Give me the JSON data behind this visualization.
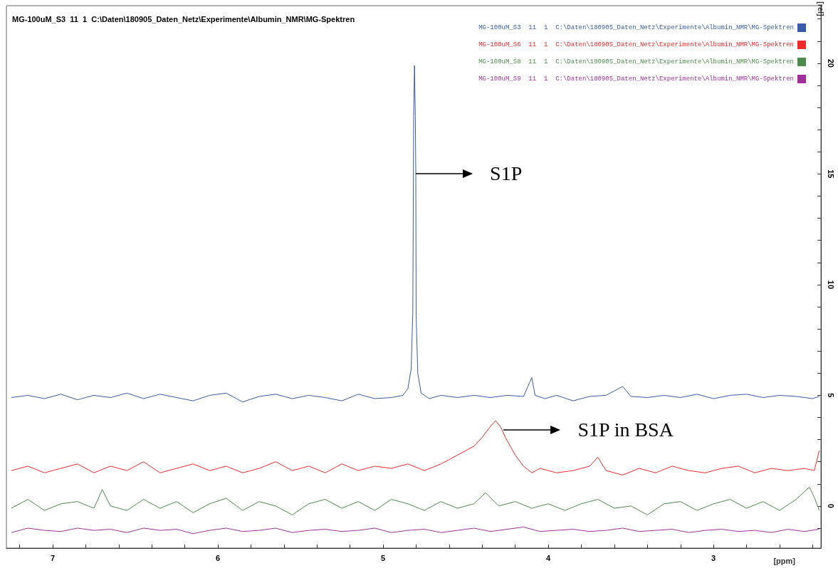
{
  "chart_data": {
    "type": "line",
    "title": "MG-100uM_S3  11  1  C:\\Daten\\180905_Daten_Netz\\Experimente\\Albumin_NMR\\MG-Spektren",
    "xlabel": "[ppm]",
    "ylabel": "[rel]",
    "xlim": [
      7.28,
      2.35
    ],
    "xticks": [
      {
        "value": 7.2,
        "label": null
      },
      {
        "value": 7,
        "label": "7"
      },
      {
        "value": 6.8,
        "label": null
      },
      {
        "value": 6.6,
        "label": null
      },
      {
        "value": 6.4,
        "label": null
      },
      {
        "value": 6.2,
        "label": null
      },
      {
        "value": 6,
        "label": "6"
      },
      {
        "value": 5.8,
        "label": null
      },
      {
        "value": 5.6,
        "label": null
      },
      {
        "value": 5.4,
        "label": null
      },
      {
        "value": 5.2,
        "label": null
      },
      {
        "value": 5,
        "label": "5"
      },
      {
        "value": 4.8,
        "label": null
      },
      {
        "value": 4.6,
        "label": null
      },
      {
        "value": 4.4,
        "label": null
      },
      {
        "value": 4.2,
        "label": null
      },
      {
        "value": 4,
        "label": "4"
      },
      {
        "value": 3.8,
        "label": null
      },
      {
        "value": 3.6,
        "label": null
      },
      {
        "value": 3.4,
        "label": null
      },
      {
        "value": 3.2,
        "label": null
      },
      {
        "value": 3,
        "label": "3"
      },
      {
        "value": 2.8,
        "label": null
      },
      {
        "value": 2.6,
        "label": null
      },
      {
        "value": 2.4,
        "label": null
      }
    ],
    "ylim": [
      -1.9,
      22.6
    ],
    "yticks": [
      {
        "value": -1,
        "label": null
      },
      0,
      {
        "value": 1,
        "label": null
      },
      {
        "value": 2,
        "label": null
      },
      {
        "value": 3,
        "label": null
      },
      {
        "value": 4,
        "label": null
      },
      5,
      {
        "value": 6,
        "label": null
      },
      {
        "value": 7,
        "label": null
      },
      {
        "value": 8,
        "label": null
      },
      {
        "value": 9,
        "label": null
      },
      10,
      {
        "value": 11,
        "label": null
      },
      {
        "value": 12,
        "label": null
      },
      {
        "value": 13,
        "label": null
      },
      {
        "value": 14,
        "label": null
      },
      15,
      {
        "value": 16,
        "label": null
      },
      {
        "value": 17,
        "label": null
      },
      {
        "value": 18,
        "label": null
      },
      {
        "value": 19,
        "label": null
      },
      20,
      {
        "value": 21,
        "label": null
      },
      {
        "value": 22,
        "label": null
      }
    ],
    "grid": false,
    "legend": "top right",
    "marker": "none",
    "line_style": "solid",
    "annotations": [
      {
        "text": "S1P",
        "x": 4.802,
        "y": 15
      },
      {
        "text": "S1P in BSA",
        "x": 4.27,
        "y": 3.45
      }
    ],
    "series": [
      {
        "name": "MG-100uM_S9  11  1  C:\\Daten\\180905_Daten_Netz\\Experimente\\Albumin_NMR\\MG-Spektren",
        "color": "#a0309a",
        "x": [
          7.25,
          7.15,
          7.05,
          6.95,
          6.85,
          6.75,
          6.65,
          6.55,
          6.45,
          6.35,
          6.25,
          6.15,
          6.05,
          5.95,
          5.85,
          5.75,
          5.65,
          5.55,
          5.45,
          5.35,
          5.25,
          5.15,
          5.05,
          4.95,
          4.85,
          4.75,
          4.65,
          4.55,
          4.45,
          4.35,
          4.25,
          4.15,
          4.05,
          3.95,
          3.85,
          3.75,
          3.65,
          3.55,
          3.45,
          3.35,
          3.25,
          3.15,
          3.05,
          2.95,
          2.85,
          2.75,
          2.65,
          2.55,
          2.45,
          2.36
        ],
        "values": [
          -1.2,
          -1.0,
          -1.1,
          -1.15,
          -1.0,
          -1.1,
          -1.05,
          -1.2,
          -1.0,
          -1.1,
          -1.05,
          -1.25,
          -1.1,
          -1.0,
          -1.15,
          -1.1,
          -1.0,
          -1.2,
          -1.1,
          -1.05,
          -1.15,
          -1.1,
          -1.0,
          -1.2,
          -1.1,
          -1.05,
          -1.2,
          -1.1,
          -1.0,
          -1.15,
          -1.05,
          -0.95,
          -1.15,
          -1.1,
          -1.05,
          -1.15,
          -1.1,
          -1.0,
          -1.15,
          -1.1,
          -1.05,
          -1.2,
          -1.1,
          -1.05,
          -1.15,
          -1.1,
          -1.2,
          -1.05,
          -1.15,
          -1.05
        ]
      },
      {
        "name": "MG-100uM_S8  11  1  C:\\Daten\\180905_Daten_Netz\\Experimente\\Albumin_NMR\\MG-Spektren",
        "color": "#4e8a4e",
        "x": [
          7.25,
          7.15,
          7.05,
          6.95,
          6.85,
          6.75,
          6.7,
          6.65,
          6.55,
          6.45,
          6.35,
          6.25,
          6.15,
          6.05,
          5.95,
          5.85,
          5.75,
          5.65,
          5.55,
          5.45,
          5.35,
          5.25,
          5.15,
          5.05,
          4.95,
          4.85,
          4.75,
          4.65,
          4.55,
          4.45,
          4.38,
          4.3,
          4.2,
          4.1,
          4.0,
          3.9,
          3.8,
          3.7,
          3.6,
          3.5,
          3.4,
          3.3,
          3.2,
          3.1,
          3.0,
          2.9,
          2.8,
          2.7,
          2.6,
          2.5,
          2.42,
          2.39,
          2.36
        ],
        "values": [
          -0.1,
          0.3,
          -0.2,
          0.1,
          0.2,
          -0.1,
          0.75,
          0.0,
          -0.2,
          0.3,
          -0.1,
          0.2,
          -0.3,
          0.1,
          0.35,
          -0.2,
          0.2,
          0.0,
          -0.4,
          0.1,
          0.3,
          -0.1,
          0.2,
          -0.2,
          0.3,
          0.1,
          -0.2,
          0.2,
          -0.1,
          0.1,
          0.6,
          0.0,
          0.2,
          -0.1,
          0.1,
          -0.2,
          0.1,
          0.3,
          -0.1,
          0.0,
          -0.4,
          0.1,
          0.2,
          -0.2,
          0.1,
          0.3,
          -0.1,
          0.2,
          -0.2,
          0.3,
          0.85,
          0.4,
          -0.2
        ]
      },
      {
        "name": "MG-100uM_S6  11  1  C:\\Daten\\180905_Daten_Netz\\Experimente\\Albumin_NMR\\MG-Spektren",
        "color": "#ee2a2a",
        "x": [
          7.25,
          7.15,
          7.05,
          6.95,
          6.85,
          6.75,
          6.65,
          6.55,
          6.45,
          6.35,
          6.25,
          6.15,
          6.05,
          5.95,
          5.85,
          5.75,
          5.65,
          5.55,
          5.45,
          5.35,
          5.25,
          5.15,
          5.05,
          4.95,
          4.85,
          4.75,
          4.65,
          4.6,
          4.5,
          4.45,
          4.4,
          4.35,
          4.32,
          4.29,
          4.26,
          4.23,
          4.2,
          4.15,
          4.1,
          4.05,
          3.95,
          3.85,
          3.75,
          3.7,
          3.65,
          3.55,
          3.45,
          3.35,
          3.25,
          3.15,
          3.05,
          2.95,
          2.85,
          2.75,
          2.65,
          2.55,
          2.45,
          2.39,
          2.36
        ],
        "values": [
          1.6,
          1.8,
          1.5,
          1.7,
          1.9,
          1.5,
          1.8,
          1.6,
          2.0,
          1.5,
          1.7,
          1.9,
          1.6,
          1.8,
          1.5,
          1.7,
          2.0,
          1.6,
          1.8,
          1.5,
          1.9,
          1.6,
          1.8,
          1.7,
          1.9,
          1.6,
          1.9,
          2.1,
          2.5,
          2.7,
          3.1,
          3.6,
          3.85,
          3.6,
          3.1,
          2.7,
          2.3,
          1.8,
          1.5,
          1.7,
          1.5,
          1.6,
          1.8,
          2.2,
          1.6,
          1.4,
          1.7,
          1.5,
          1.8,
          1.6,
          1.5,
          1.7,
          1.8,
          1.5,
          1.7,
          1.6,
          1.7,
          1.6,
          2.5
        ]
      },
      {
        "name": "MG-100uM_S3  11  1  C:\\Daten\\180905_Daten_Netz\\Experimente\\Albumin_NMR\\MG-Spektren",
        "color": "#3a5ba8",
        "x": [
          7.25,
          7.15,
          7.05,
          6.95,
          6.85,
          6.75,
          6.65,
          6.55,
          6.45,
          6.35,
          6.25,
          6.15,
          6.05,
          5.95,
          5.85,
          5.75,
          5.65,
          5.55,
          5.45,
          5.35,
          5.25,
          5.15,
          5.05,
          4.95,
          4.88,
          4.85,
          4.83,
          4.82,
          4.815,
          4.81,
          4.805,
          4.802,
          4.8,
          4.79,
          4.77,
          4.72,
          4.65,
          4.55,
          4.45,
          4.35,
          4.25,
          4.15,
          4.1,
          4.08,
          4.02,
          3.95,
          3.85,
          3.75,
          3.65,
          3.55,
          3.5,
          3.4,
          3.3,
          3.2,
          3.1,
          3.0,
          2.9,
          2.8,
          2.7,
          2.6,
          2.5,
          2.4,
          2.36
        ],
        "values": [
          4.9,
          5.0,
          4.85,
          5.05,
          4.8,
          5.0,
          4.9,
          5.1,
          4.85,
          5.05,
          4.9,
          4.75,
          5.0,
          5.1,
          4.7,
          4.95,
          5.05,
          4.85,
          5.0,
          4.9,
          4.75,
          5.05,
          4.85,
          4.9,
          5.0,
          5.3,
          6.2,
          8.8,
          17.6,
          19.9,
          17.6,
          15,
          8.6,
          6.0,
          5.1,
          4.85,
          5.0,
          4.9,
          5.0,
          4.9,
          5.0,
          4.95,
          5.8,
          5.0,
          4.85,
          5.0,
          4.75,
          4.95,
          5.0,
          5.4,
          4.95,
          4.9,
          5.0,
          4.9,
          5.05,
          4.85,
          5.0,
          5.05,
          4.9,
          5.0,
          4.95,
          4.85,
          4.95
        ]
      }
    ]
  }
}
